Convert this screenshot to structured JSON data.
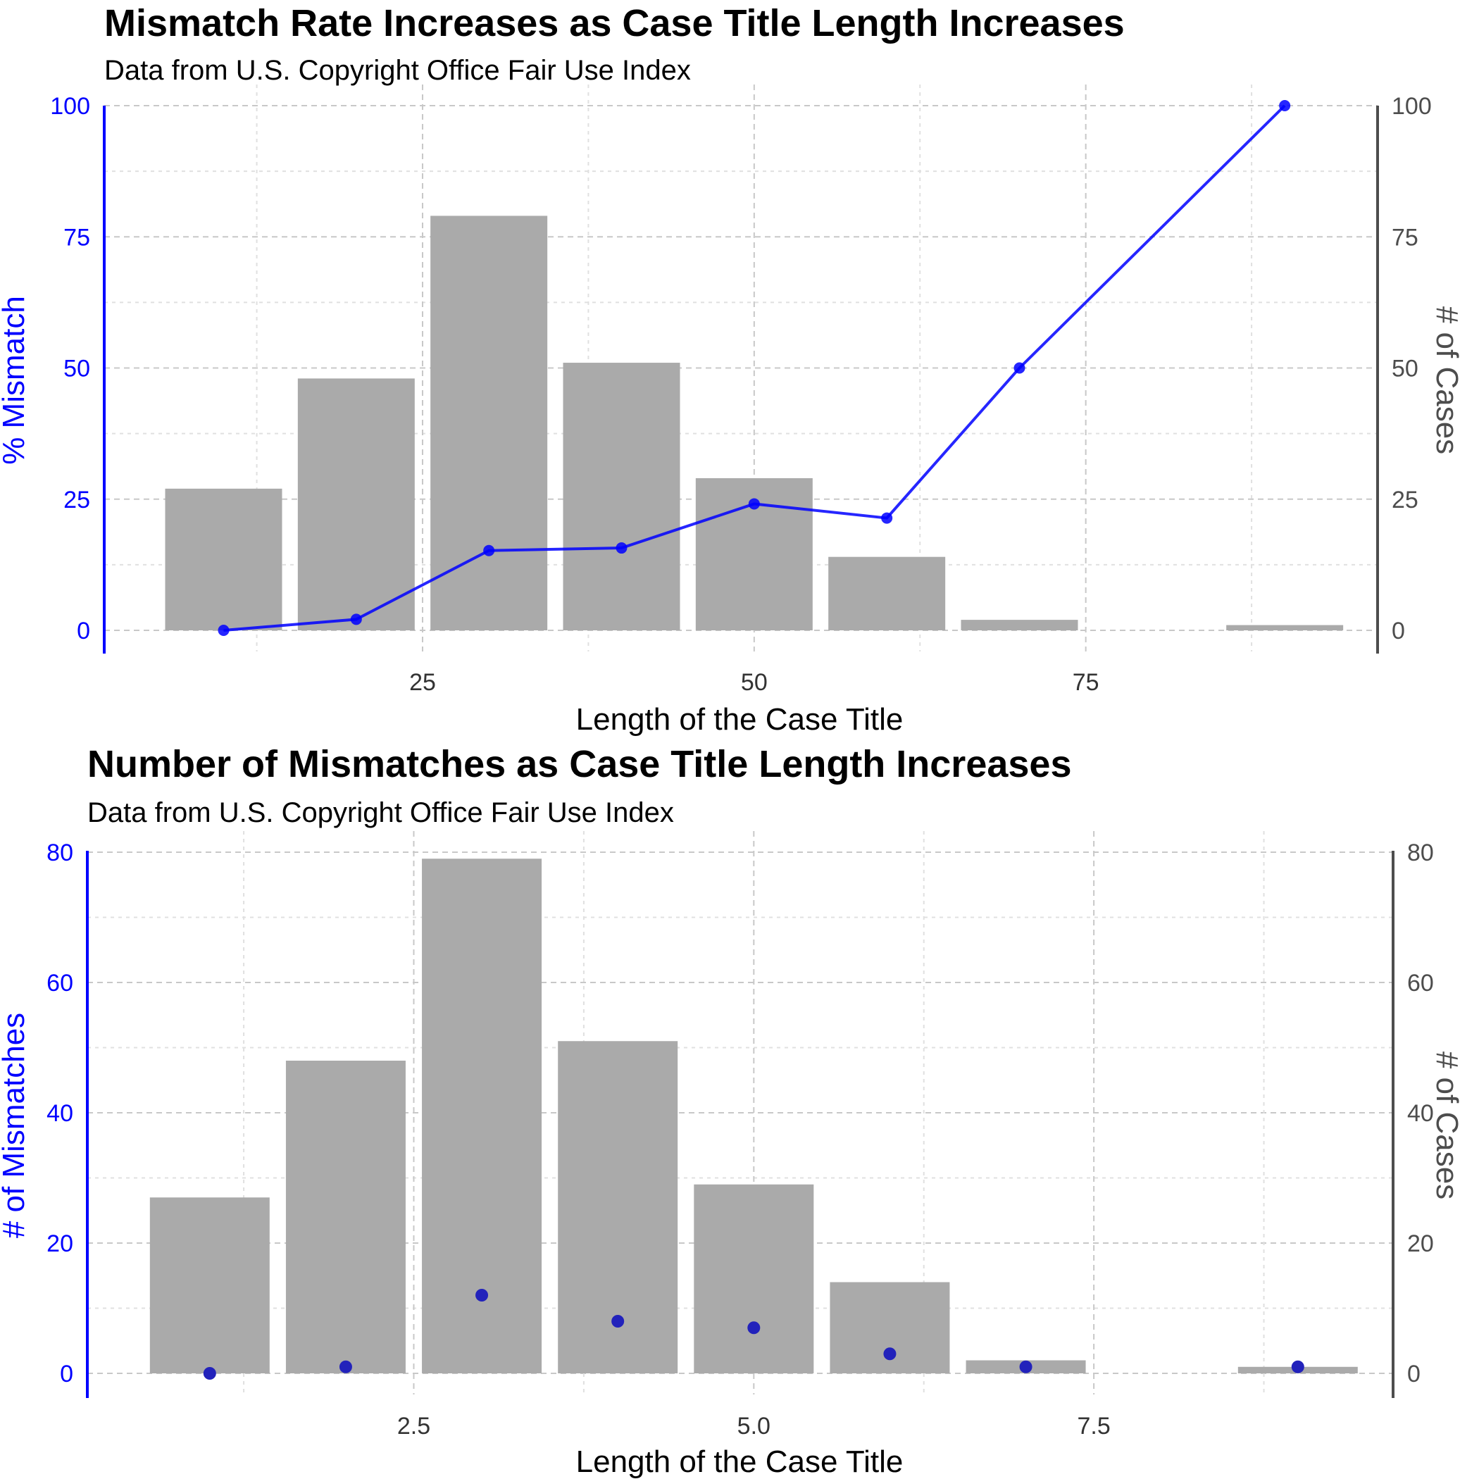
{
  "chart_data": [
    {
      "type": "bar",
      "title": "Mismatch Rate Increases as Case Title Length Increases",
      "subtitle": "Data from U.S. Copyright Office Fair Use Index",
      "xlabel": "Length of the Case Title",
      "ylabel_left": "% Mismatch",
      "ylabel_right": "# of Cases",
      "xlim": [
        1,
        97
      ],
      "ylim": [
        0,
        100
      ],
      "x_ticks": [
        "25",
        "50",
        "75"
      ],
      "y_ticks_left": [
        "0",
        "25",
        "50",
        "75",
        "100"
      ],
      "y_ticks_right": [
        "0",
        "25",
        "50",
        "75",
        "100"
      ],
      "grid": true,
      "bars": {
        "x": [
          10,
          20,
          30,
          40,
          50,
          60,
          70,
          80,
          90
        ],
        "values": [
          27,
          48,
          79,
          51,
          29,
          14,
          2,
          0,
          1
        ],
        "color": "#aaaaaa"
      },
      "line": {
        "x": [
          10,
          20,
          30,
          40,
          50,
          60,
          70,
          90
        ],
        "values": [
          0,
          2.1,
          15.2,
          15.7,
          24.1,
          21.4,
          50,
          100
        ],
        "color": "#0000ff"
      }
    },
    {
      "type": "bar",
      "title": "Number of Mismatches as Case Title Length Increases",
      "subtitle": "Data from U.S. Copyright Office Fair Use Index",
      "xlabel": "Length of the Case Title",
      "ylabel_left": "# of Mismatches",
      "ylabel_right": "# of Cases",
      "xlim": [
        0.1,
        9.7
      ],
      "ylim": [
        0,
        80
      ],
      "x_ticks": [
        "2.5",
        "5.0",
        "7.5"
      ],
      "y_ticks_left": [
        "0",
        "20",
        "40",
        "60",
        "80"
      ],
      "y_ticks_right": [
        "0",
        "20",
        "40",
        "60",
        "80"
      ],
      "grid": true,
      "bars": {
        "x": [
          1,
          2,
          3,
          4,
          5,
          6,
          7,
          8,
          9
        ],
        "values": [
          27,
          48,
          79,
          51,
          29,
          14,
          2,
          0,
          1
        ],
        "color": "#aaaaaa"
      },
      "points": {
        "x": [
          1,
          2,
          3,
          4,
          5,
          6,
          7,
          9
        ],
        "values": [
          0,
          1,
          12,
          8,
          7,
          3,
          1,
          1
        ],
        "color": "#2222bb"
      }
    }
  ]
}
